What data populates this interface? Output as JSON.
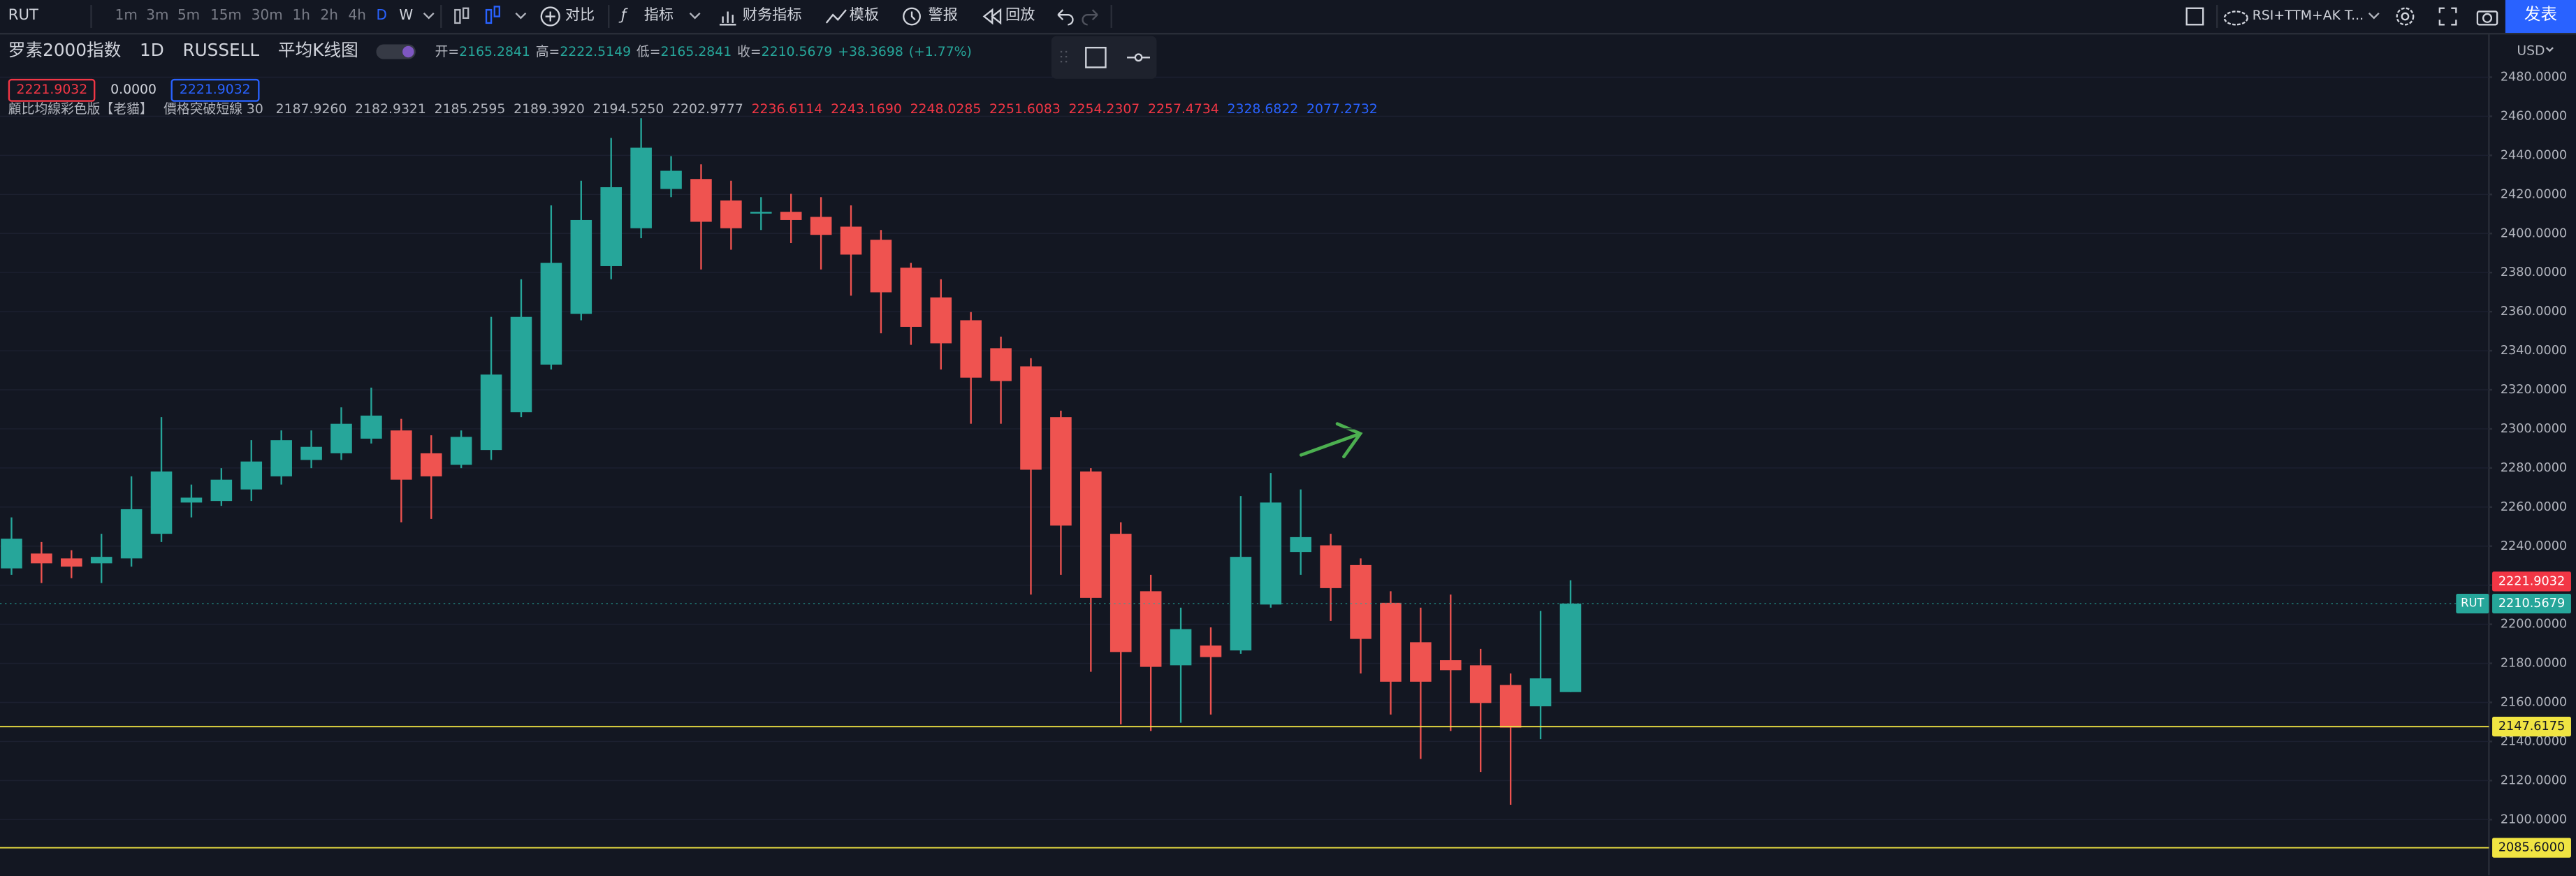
{
  "toolbar": {
    "symbol": "RUT",
    "intervals": [
      "1m",
      "3m",
      "5m",
      "15m",
      "30m",
      "1h",
      "2h",
      "4h",
      "D",
      "W"
    ],
    "buttons": [
      "对比",
      "指标",
      "财务指标",
      "模板",
      "警报",
      "回放"
    ],
    "indicator_template": "RSI+TTM+AK T...",
    "publish": "发表"
  },
  "legend": {
    "title": "罗素2000指数",
    "interval": "1D",
    "exchange": "RUSSELL",
    "chart_style": "平均K线图",
    "ohlc_labels": [
      "开=",
      "高=",
      "低=",
      "收="
    ],
    "change": "+38.3698",
    "change_pct": "(+1.77%)",
    "boxes": [
      "2221.9032",
      "0.0000",
      "2221.9032"
    ],
    "indicator_name": "顧比均線彩色版【老貓】",
    "indicator_params": "價格突破短線 30",
    "indicator_values": [
      {
        "text": "2187.9260",
        "color": "#b2b5be"
      },
      {
        "text": "2182.9321",
        "color": "#b2b5be"
      },
      {
        "text": "2185.2595",
        "color": "#b2b5be"
      },
      {
        "text": "2189.3920",
        "color": "#b2b5be"
      },
      {
        "text": "2194.5250",
        "color": "#b2b5be"
      },
      {
        "text": "2202.9777",
        "color": "#b2b5be"
      },
      {
        "text": "2236.6114",
        "color": "#f23645"
      },
      {
        "text": "2243.1690",
        "color": "#f23645"
      },
      {
        "text": "2248.0285",
        "color": "#f23645"
      },
      {
        "text": "2251.6083",
        "color": "#f23645"
      },
      {
        "text": "2254.2307",
        "color": "#f23645"
      },
      {
        "text": "2257.4734",
        "color": "#f23645"
      },
      {
        "text": "2328.6822",
        "color": "#2962ff"
      },
      {
        "text": "2077.2732",
        "color": "#2962ff"
      }
    ]
  },
  "chart_data": {
    "type": "candlestick",
    "currency": "USD",
    "series": [
      {
        "name": "RUT",
        "up_color": "#26a69a",
        "down_color": "#ef5350",
        "open": [
          2228.6,
          2236.2,
          2233.7,
          2231.2,
          2233.7,
          2246.3,
          2262.3,
          2263.1,
          2269.0,
          2275.7,
          2284.1,
          2287.5,
          2295.0,
          2299.2,
          2287.5,
          2281.6,
          2289.2,
          2308.5,
          2332.9,
          2358.9,
          2383.3,
          2402.7,
          2422.8,
          2427.9,
          2416.9,
          2410.2,
          2411.1,
          2408.5,
          2403.5,
          2396.8,
          2382.5,
          2367.3,
          2355.6,
          2341.3,
          2332.0,
          2306.0,
          2278.2,
          2246.3,
          2216.9,
          2179.0,
          2189.1,
          2186.6,
          2210.1,
          2237.0,
          2240.4,
          2230.3,
          2211.0,
          2190.8,
          2181.6,
          2179.0,
          2168.9,
          2158.0,
          2165.2841
        ],
        "high": [
          2254.7,
          2242.1,
          2237.9,
          2246.3,
          2275.7,
          2306.0,
          2271.5,
          2279.9,
          2294.2,
          2299.2,
          2299.2,
          2311.0,
          2321.1,
          2305.1,
          2296.7,
          2299.2,
          2357.3,
          2376.6,
          2414.4,
          2427.0,
          2448.9,
          2459.0,
          2439.6,
          2435.4,
          2427.0,
          2418.6,
          2420.3,
          2418.6,
          2414.4,
          2401.8,
          2385.0,
          2376.6,
          2359.8,
          2347.2,
          2336.2,
          2309.3,
          2279.9,
          2252.2,
          2225.3,
          2208.5,
          2198.4,
          2265.6,
          2277.4,
          2269.0,
          2246.3,
          2233.7,
          2216.9,
          2208.5,
          2215.2,
          2187.4,
          2174.8,
          2206.8,
          2222.5149
        ],
        "low": [
          2225.3,
          2221.1,
          2223.6,
          2221.1,
          2229.5,
          2242.1,
          2254.7,
          2260.6,
          2263.1,
          2271.5,
          2279.9,
          2284.1,
          2292.5,
          2252.2,
          2253.9,
          2279.9,
          2284.1,
          2306.0,
          2330.4,
          2355.6,
          2376.6,
          2397.6,
          2418.6,
          2381.6,
          2391.7,
          2401.8,
          2395.1,
          2381.6,
          2368.2,
          2348.9,
          2343.0,
          2330.4,
          2302.6,
          2302.6,
          2215.2,
          2225.3,
          2175.7,
          2148.8,
          2145.4,
          2149.6,
          2153.8,
          2184.9,
          2208.5,
          2225.3,
          2201.7,
          2174.8,
          2153.8,
          2131.1,
          2145.4,
          2124.4,
          2107.6,
          2141.2,
          2165.2841
        ],
        "close": [
          2243.8,
          2231.2,
          2229.5,
          2234.5,
          2258.9,
          2278.2,
          2264.8,
          2274.0,
          2283.3,
          2294.2,
          2290.8,
          2302.6,
          2306.8,
          2274.0,
          2275.7,
          2295.9,
          2327.8,
          2357.3,
          2385.0,
          2406.9,
          2423.7,
          2443.9,
          2432.1,
          2406.0,
          2402.7,
          2411.1,
          2406.9,
          2399.3,
          2389.2,
          2369.9,
          2352.2,
          2343.8,
          2326.2,
          2324.5,
          2279.1,
          2250.5,
          2213.5,
          2185.8,
          2178.2,
          2197.5,
          2183.2,
          2234.5,
          2262.3,
          2244.6,
          2218.5,
          2192.5,
          2170.6,
          2170.6,
          2176.5,
          2159.7,
          2147.1,
          2172.3,
          2210.5679
        ]
      }
    ],
    "ylim": [
      2071.4,
      2502.7
    ],
    "yticks": [
      {
        "value": 2100,
        "label": "2100.0000"
      },
      {
        "value": 2120,
        "label": "2120.0000"
      },
      {
        "value": 2140,
        "label": "2140.0000"
      },
      {
        "value": 2160,
        "label": "2160.0000"
      },
      {
        "value": 2180,
        "label": "2180.0000"
      },
      {
        "value": 2200,
        "label": "2200.0000"
      },
      {
        "value": 2220,
        "label": "2220.0000"
      },
      {
        "value": 2240,
        "label": "2240.0000"
      },
      {
        "value": 2260,
        "label": "2260.0000"
      },
      {
        "value": 2280,
        "label": "2280.0000"
      },
      {
        "value": 2300,
        "label": "2300.0000"
      },
      {
        "value": 2320,
        "label": "2320.0000"
      },
      {
        "value": 2340,
        "label": "2340.0000"
      },
      {
        "value": 2360,
        "label": "2360.0000"
      },
      {
        "value": 2380,
        "label": "2380.0000"
      },
      {
        "value": 2400,
        "label": "2400.0000"
      },
      {
        "value": 2420,
        "label": "2420.0000"
      },
      {
        "value": 2440,
        "label": "2440.0000"
      },
      {
        "value": 2460,
        "label": "2460.0000"
      },
      {
        "value": 2480,
        "label": "2480.0000"
      }
    ],
    "grid": true,
    "hlines": [
      {
        "value": 2147.6175,
        "label": "2147.6175",
        "color": "#f0e442"
      },
      {
        "value": 2085.6,
        "label": "2085.6000",
        "color": "#f0e442"
      }
    ],
    "price_markers": [
      {
        "value": 2221.9032,
        "label": "2221.9032",
        "color": "#f23645"
      }
    ]
  }
}
